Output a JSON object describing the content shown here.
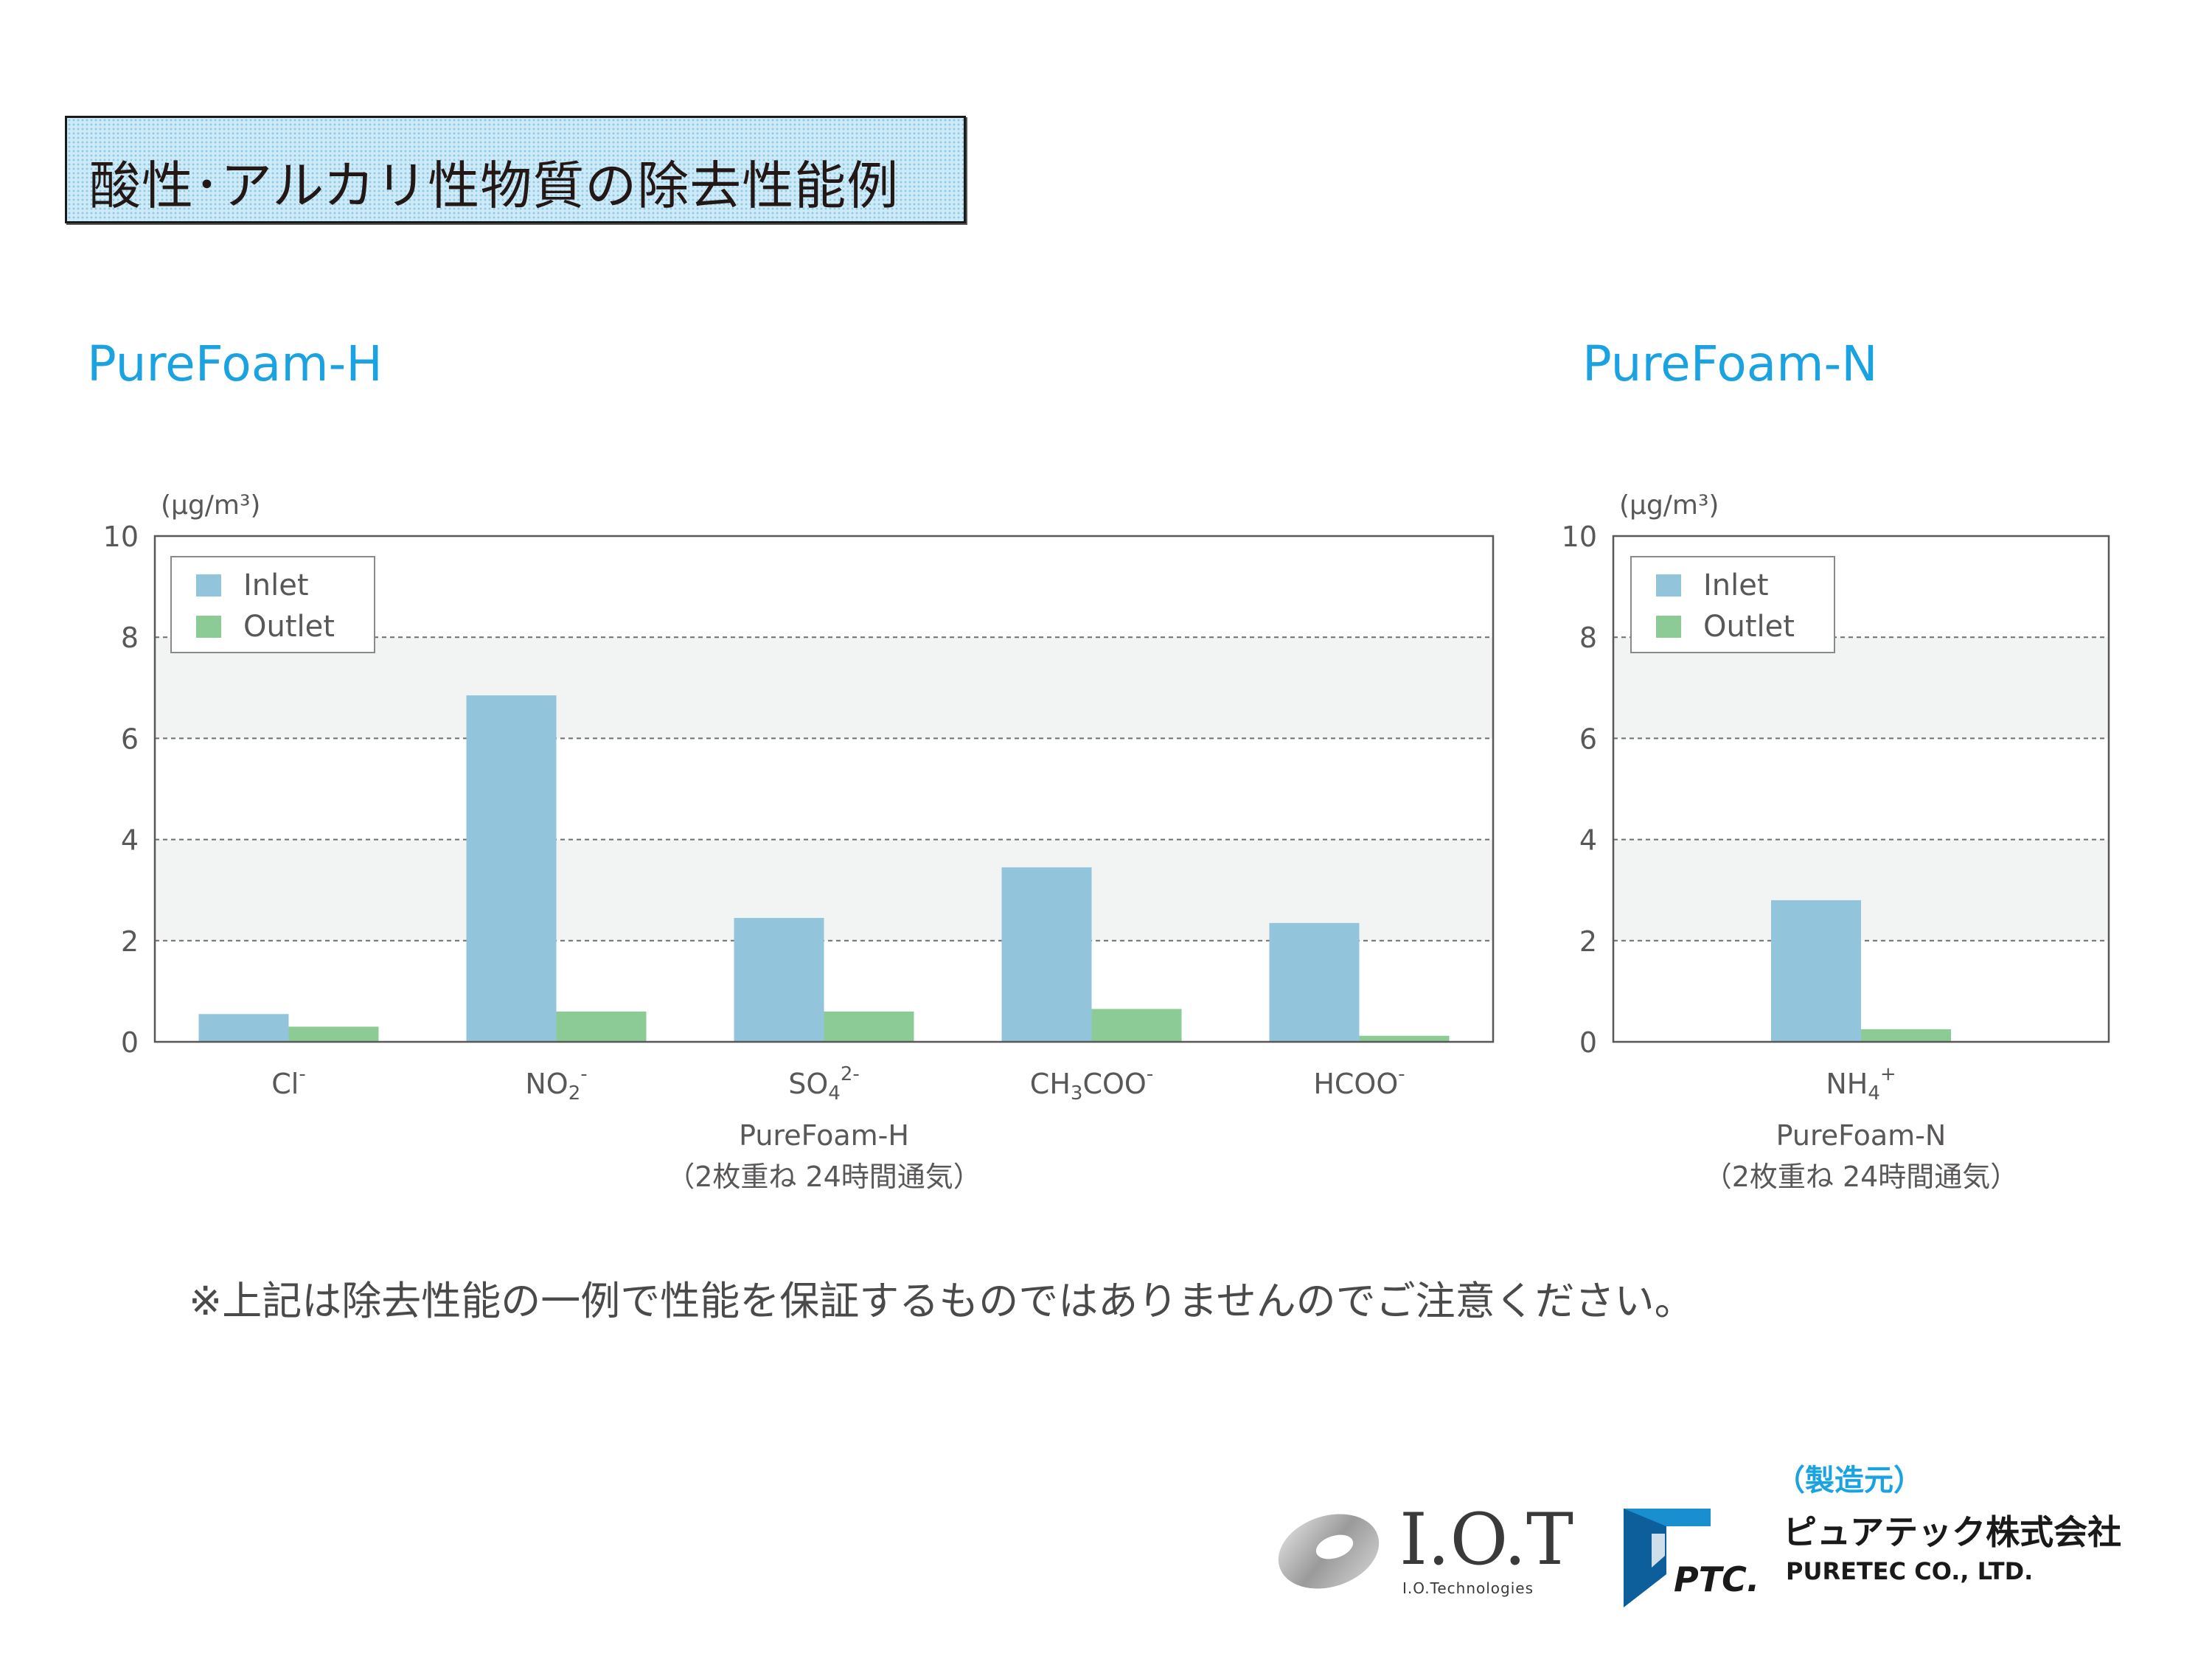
{
  "heading": "酸性･アルカリ性物質の除去性能例",
  "note": "※上記は除去性能の一例で性能を保証するものではありませんのでご注意ください。",
  "maker_label": "（製造元）",
  "logos": {
    "iot_text": "I.O.T",
    "iot_sub": "I.O.Technologies",
    "ptc_text": "PTC.",
    "puretec_jp": "ピュアテック株式会社",
    "puretec_en": "PURETEC CO., LTD."
  },
  "colors": {
    "inlet": "#92c5dc",
    "outlet": "#8dcb96",
    "accent": "#1aa3e0",
    "band": "#f2f3f3"
  },
  "chart_data": [
    {
      "type": "bar",
      "section_title": "PureFoam-H",
      "unit": "(μg/m³)",
      "ylim": [
        0,
        10
      ],
      "yticks": [
        0,
        2,
        4,
        6,
        8,
        10
      ],
      "grid": true,
      "legend_position": "top-left",
      "categories": [
        {
          "base": "Cl",
          "sub": "",
          "sup": "-"
        },
        {
          "base": "NO",
          "sub": "2",
          "sup": "-"
        },
        {
          "base": "SO",
          "sub": "4",
          "sup": "2-"
        },
        {
          "base": "CH",
          "sub": "3",
          "rest": "COO",
          "sup": "-"
        },
        {
          "base": "HCOO",
          "sub": "",
          "sup": "-"
        }
      ],
      "series": [
        {
          "name": "Inlet",
          "values": [
            0.55,
            6.85,
            2.45,
            3.45,
            2.35
          ]
        },
        {
          "name": "Outlet",
          "values": [
            0.3,
            0.6,
            0.6,
            0.65,
            0.12
          ]
        }
      ],
      "xlabel": "PureFoam-H",
      "xlabel_sub": "（2枚重ね 24時間通気）"
    },
    {
      "type": "bar",
      "section_title": "PureFoam-N",
      "unit": "(μg/m³)",
      "ylim": [
        0,
        10
      ],
      "yticks": [
        0,
        2,
        4,
        6,
        8,
        10
      ],
      "grid": true,
      "legend_position": "top-left",
      "categories": [
        {
          "base": "NH",
          "sub": "4",
          "sup": "+"
        }
      ],
      "series": [
        {
          "name": "Inlet",
          "values": [
            2.8
          ]
        },
        {
          "name": "Outlet",
          "values": [
            0.25
          ]
        }
      ],
      "xlabel": "PureFoam-N",
      "xlabel_sub": "（2枚重ね 24時間通気）"
    }
  ]
}
